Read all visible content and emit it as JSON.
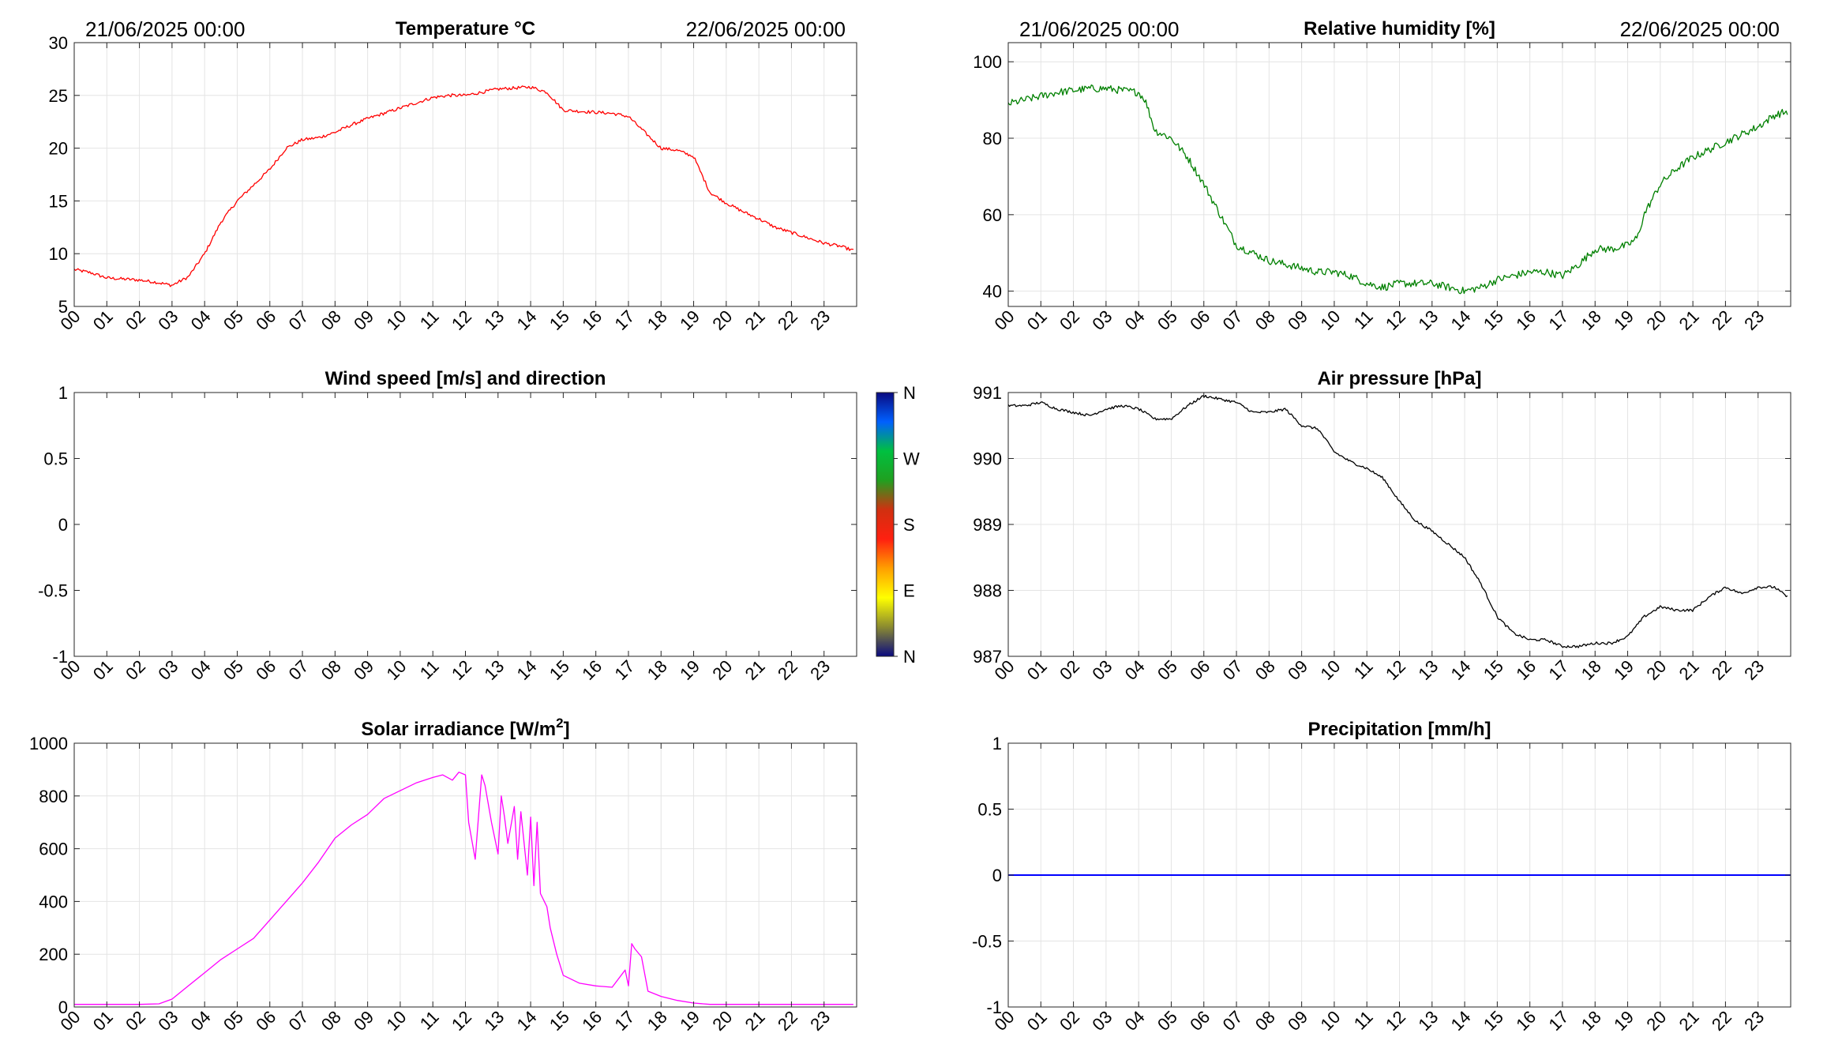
{
  "chart_data": [
    {
      "id": "temperature",
      "type": "line",
      "title": "Temperature °C",
      "title_sup": "",
      "header_left": "21/06/2025 00:00",
      "header_right": "22/06/2025 00:00",
      "xlim": [
        0,
        24
      ],
      "x_tick_labels": [
        "00",
        "01",
        "02",
        "03",
        "04",
        "05",
        "06",
        "07",
        "08",
        "09",
        "10",
        "11",
        "12",
        "13",
        "14",
        "15",
        "16",
        "17",
        "18",
        "19",
        "20",
        "21",
        "22",
        "23"
      ],
      "ylim": [
        5,
        30
      ],
      "y_ticks": [
        5,
        10,
        15,
        20,
        25,
        30
      ],
      "y_tick_labels": [
        "5",
        "10",
        "15",
        "20",
        "25",
        "30"
      ],
      "grid": true,
      "color": "#ff0000",
      "noise": 0.15,
      "series": [
        {
          "x": [
            0,
            0.5,
            1,
            1.5,
            2,
            2.5,
            3,
            3.5,
            4,
            4.5,
            5,
            5.5,
            6,
            6.5,
            7,
            7.5,
            8,
            8.5,
            9,
            9.5,
            10,
            10.5,
            11,
            11.5,
            12,
            12.5,
            13,
            13.5,
            14,
            14.5,
            15,
            15.5,
            16,
            16.5,
            17,
            17.5,
            18,
            18.5,
            19,
            19.5,
            20,
            20.5,
            21,
            21.5,
            22,
            22.5,
            23,
            23.5,
            23.9
          ],
          "y": [
            8.5,
            8.2,
            7.7,
            7.6,
            7.5,
            7.3,
            7.0,
            7.8,
            10.0,
            13.0,
            15.0,
            16.5,
            18.0,
            20.0,
            20.8,
            21.0,
            21.5,
            22.2,
            22.8,
            23.3,
            23.8,
            24.3,
            24.8,
            25.0,
            25.0,
            25.3,
            25.6,
            25.7,
            25.8,
            25.3,
            23.6,
            23.5,
            23.4,
            23.3,
            23.0,
            21.5,
            20.0,
            19.8,
            19.2,
            15.8,
            14.8,
            14.0,
            13.3,
            12.5,
            12.0,
            11.5,
            11.0,
            10.7,
            10.3
          ]
        }
      ]
    },
    {
      "id": "humidity",
      "type": "line",
      "title": "Relative humidity [%]",
      "title_sup": "",
      "header_left": "21/06/2025 00:00",
      "header_right": "22/06/2025 00:00",
      "xlim": [
        0,
        24
      ],
      "x_tick_labels": [
        "00",
        "01",
        "02",
        "03",
        "04",
        "05",
        "06",
        "07",
        "08",
        "09",
        "10",
        "11",
        "12",
        "13",
        "14",
        "15",
        "16",
        "17",
        "18",
        "19",
        "20",
        "21",
        "22",
        "23"
      ],
      "ylim": [
        36,
        105
      ],
      "y_ticks": [
        40,
        60,
        80,
        100
      ],
      "y_tick_labels": [
        "40",
        "60",
        "80",
        "100"
      ],
      "grid": true,
      "color": "#008000",
      "noise": 1.0,
      "series": [
        {
          "x": [
            0,
            0.5,
            1,
            1.5,
            2,
            2.5,
            3,
            3.5,
            4,
            4.2,
            4.5,
            5,
            5.5,
            6,
            6.5,
            7,
            7.5,
            8,
            8.5,
            9,
            9.5,
            10,
            10.5,
            11,
            11.5,
            12,
            12.5,
            13,
            13.5,
            14,
            14.5,
            15,
            15.5,
            16,
            16.5,
            17,
            17.5,
            18,
            18.5,
            19,
            19.3,
            19.5,
            20,
            20.5,
            21,
            21.5,
            22,
            22.5,
            23,
            23.5,
            23.9
          ],
          "y": [
            89,
            90,
            91,
            92,
            92.5,
            93,
            93,
            92.5,
            92,
            90,
            82,
            80,
            75,
            68,
            60,
            52,
            50,
            48,
            47,
            46,
            45,
            45,
            44,
            42,
            41,
            42,
            42,
            42,
            41,
            40,
            41,
            43,
            44,
            45,
            45,
            44,
            47,
            51,
            51,
            52,
            54,
            60,
            68,
            72,
            75,
            77,
            79,
            81,
            83,
            86,
            87
          ]
        }
      ]
    },
    {
      "id": "wind",
      "type": "line",
      "title": "Wind speed [m/s] and direction",
      "title_sup": "",
      "header_left": "",
      "header_right": "",
      "xlim": [
        0,
        24
      ],
      "x_tick_labels": [
        "00",
        "01",
        "02",
        "03",
        "04",
        "05",
        "06",
        "07",
        "08",
        "09",
        "10",
        "11",
        "12",
        "13",
        "14",
        "15",
        "16",
        "17",
        "18",
        "19",
        "20",
        "21",
        "22",
        "23"
      ],
      "ylim": [
        -1,
        1
      ],
      "y_ticks": [
        -1,
        -0.5,
        0,
        0.5,
        1
      ],
      "y_tick_labels": [
        "-1",
        "-0.5",
        "0",
        "0.5",
        "1"
      ],
      "grid": false,
      "color": "#000000",
      "noise": 0,
      "series": [],
      "colorbar": {
        "labels": [
          "N",
          "W",
          "S",
          "E",
          "N"
        ],
        "colors": [
          "#0a0a80",
          "#0060ff",
          "#00c040",
          "#20a020",
          "#d03010",
          "#ff2010",
          "#ffa000",
          "#ffff00",
          "#8a8a30",
          "#0a0a80"
        ]
      }
    },
    {
      "id": "pressure",
      "type": "line",
      "title": "Air pressure [hPa]",
      "title_sup": "",
      "header_left": "",
      "header_right": "",
      "xlim": [
        0,
        24
      ],
      "x_tick_labels": [
        "00",
        "01",
        "02",
        "03",
        "04",
        "05",
        "06",
        "07",
        "08",
        "09",
        "10",
        "11",
        "12",
        "13",
        "14",
        "15",
        "16",
        "17",
        "18",
        "19",
        "20",
        "21",
        "22",
        "23"
      ],
      "ylim": [
        987,
        991
      ],
      "y_ticks": [
        987,
        988,
        989,
        990,
        991
      ],
      "y_tick_labels": [
        "987",
        "988",
        "989",
        "990",
        "991"
      ],
      "grid": true,
      "color": "#000000",
      "noise": 0.02,
      "series": [
        {
          "x": [
            0,
            0.5,
            1,
            1.5,
            2,
            2.5,
            3,
            3.5,
            4,
            4.5,
            5,
            5.5,
            6,
            6.5,
            7,
            7.5,
            8,
            8.5,
            9,
            9.5,
            10,
            10.5,
            11,
            11.5,
            12,
            12.5,
            13,
            13.5,
            14,
            14.5,
            15,
            15.5,
            16,
            16.5,
            17,
            17.5,
            18,
            18.5,
            19,
            19.5,
            20,
            20.5,
            21,
            21.5,
            22,
            22.5,
            23,
            23.5,
            23.9
          ],
          "y": [
            990.8,
            990.8,
            990.85,
            990.75,
            990.7,
            990.65,
            990.75,
            990.8,
            990.75,
            990.6,
            990.6,
            990.8,
            990.95,
            990.9,
            990.85,
            990.7,
            990.7,
            990.75,
            990.5,
            990.45,
            990.1,
            989.95,
            989.85,
            989.7,
            989.35,
            989.05,
            988.9,
            988.7,
            988.5,
            988.1,
            987.6,
            987.35,
            987.25,
            987.25,
            987.15,
            987.15,
            987.2,
            987.2,
            987.3,
            987.6,
            987.75,
            987.7,
            987.7,
            987.9,
            988.05,
            987.95,
            988.05,
            988.05,
            987.9
          ]
        }
      ]
    },
    {
      "id": "solar",
      "type": "line",
      "title": "Solar irradiance [W/m",
      "title_sup": "2",
      "title_suffix": "]",
      "header_left": "",
      "header_right": "",
      "xlim": [
        0,
        24
      ],
      "x_tick_labels": [
        "00",
        "01",
        "02",
        "03",
        "04",
        "05",
        "06",
        "07",
        "08",
        "09",
        "10",
        "11",
        "12",
        "13",
        "14",
        "15",
        "16",
        "17",
        "18",
        "19",
        "20",
        "21",
        "22",
        "23"
      ],
      "ylim": [
        0,
        1000
      ],
      "y_ticks": [
        0,
        200,
        400,
        600,
        800,
        1000
      ],
      "y_tick_labels": [
        "0",
        "200",
        "400",
        "600",
        "800",
        "1000"
      ],
      "grid": true,
      "color": "#ff00ff",
      "noise": 0,
      "series": [
        {
          "x": [
            0,
            1,
            2,
            2.6,
            3,
            3.5,
            4,
            4.5,
            5,
            5.5,
            6,
            6.5,
            7,
            7.5,
            8,
            8.5,
            9,
            9.5,
            10,
            10.5,
            11,
            11.3,
            11.6,
            11.8,
            12,
            12.1,
            12.3,
            12.5,
            12.6,
            12.8,
            13,
            13.1,
            13.2,
            13.3,
            13.5,
            13.6,
            13.7,
            13.9,
            14,
            14.1,
            14.2,
            14.3,
            14.5,
            14.6,
            14.8,
            15,
            15.5,
            16,
            16.5,
            16.9,
            17,
            17.1,
            17.2,
            17.4,
            17.6,
            18,
            18.5,
            19,
            19.5,
            20,
            21,
            22,
            23,
            23.9
          ],
          "y": [
            10,
            10,
            10,
            12,
            30,
            80,
            130,
            180,
            220,
            260,
            330,
            400,
            470,
            550,
            640,
            690,
            730,
            790,
            820,
            850,
            870,
            880,
            860,
            890,
            880,
            700,
            560,
            880,
            840,
            700,
            580,
            800,
            720,
            620,
            760,
            560,
            740,
            500,
            720,
            460,
            700,
            430,
            380,
            300,
            200,
            120,
            90,
            80,
            75,
            140,
            80,
            240,
            220,
            190,
            60,
            40,
            25,
            15,
            10,
            10,
            10,
            10,
            10,
            10
          ]
        }
      ]
    },
    {
      "id": "precipitation",
      "type": "line",
      "title": "Precipitation [mm/h]",
      "title_sup": "",
      "header_left": "",
      "header_right": "",
      "xlim": [
        0,
        24
      ],
      "x_tick_labels": [
        "00",
        "01",
        "02",
        "03",
        "04",
        "05",
        "06",
        "07",
        "08",
        "09",
        "10",
        "11",
        "12",
        "13",
        "14",
        "15",
        "16",
        "17",
        "18",
        "19",
        "20",
        "21",
        "22",
        "23"
      ],
      "ylim": [
        -1,
        1
      ],
      "y_ticks": [
        -1,
        -0.5,
        0,
        0.5,
        1
      ],
      "y_tick_labels": [
        "-1",
        "-0.5",
        "0",
        "0.5",
        "1"
      ],
      "grid": true,
      "color": "#0000ff",
      "noise": 0,
      "series": [
        {
          "x": [
            0,
            24
          ],
          "y": [
            0,
            0
          ]
        }
      ]
    }
  ]
}
